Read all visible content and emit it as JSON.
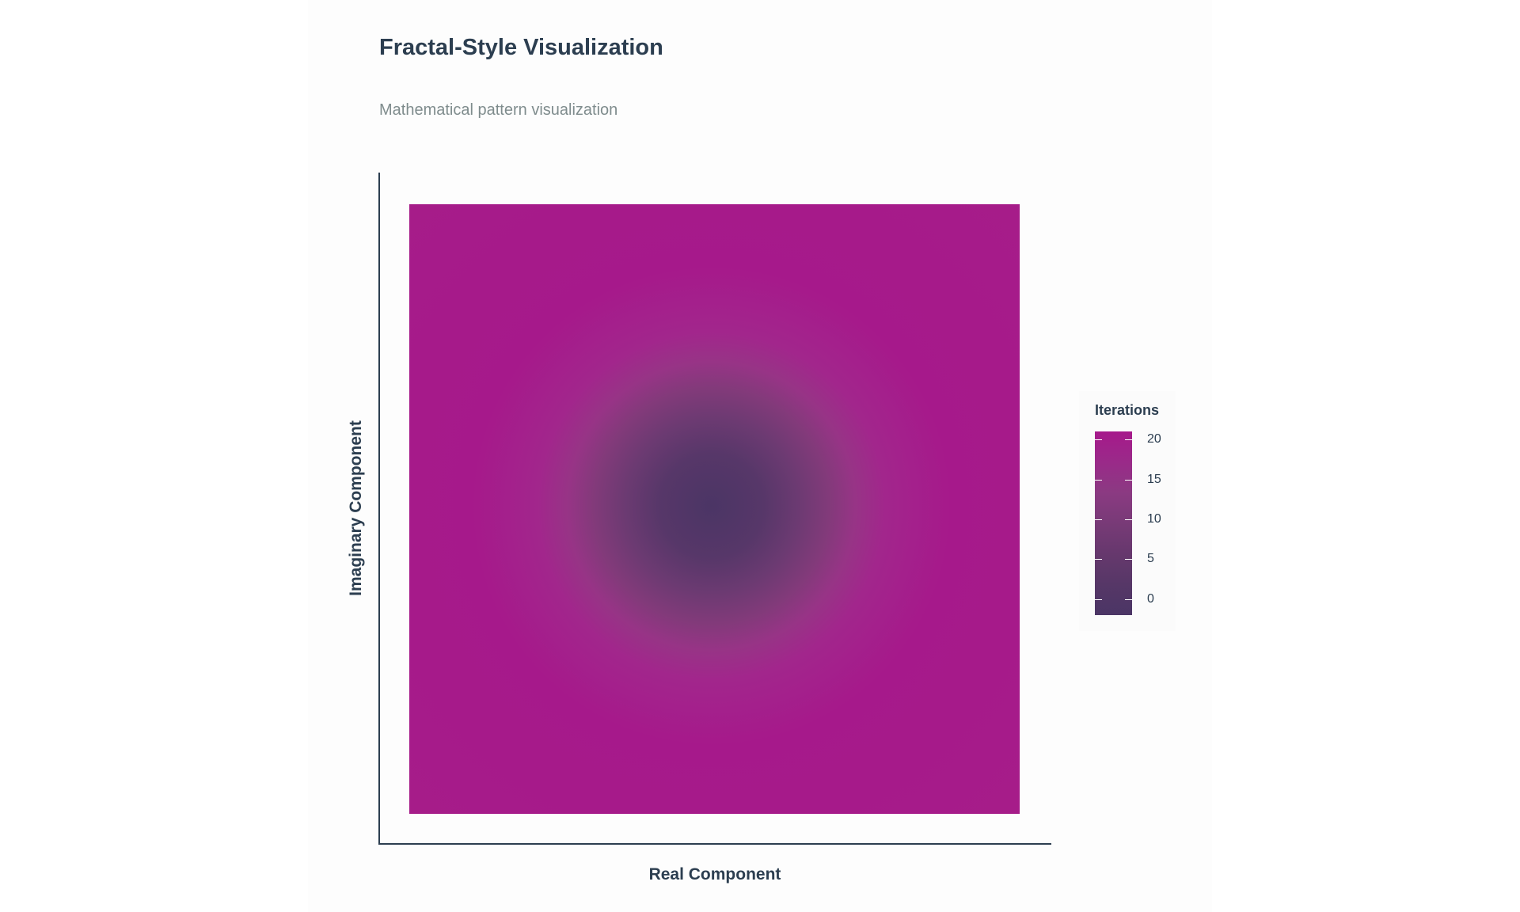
{
  "chart_data": {
    "type": "heatmap",
    "title": "Fractal-Style Visualization",
    "subtitle": "Mathematical pattern visualization",
    "xlabel": "Real Component",
    "ylabel": "Imaginary Component",
    "pattern": "radial",
    "value_min": 0,
    "value_max": 22,
    "center_value": 0,
    "edge_value": 22,
    "colorscale": [
      "#4b3565",
      "#6c3a72",
      "#8b3a82",
      "#a2268c",
      "#a6198b"
    ],
    "colorbar": {
      "title": "Iterations",
      "ticks": [
        0,
        5,
        10,
        15,
        20
      ],
      "tick_labels": [
        "0",
        "5",
        "10",
        "15",
        "20"
      ],
      "range": [
        -2,
        21
      ],
      "bands": [
        "#4b3565",
        "#563767",
        "#66386d",
        "#783a77",
        "#8b3a82",
        "#9a2a89",
        "#a6198b"
      ]
    }
  }
}
